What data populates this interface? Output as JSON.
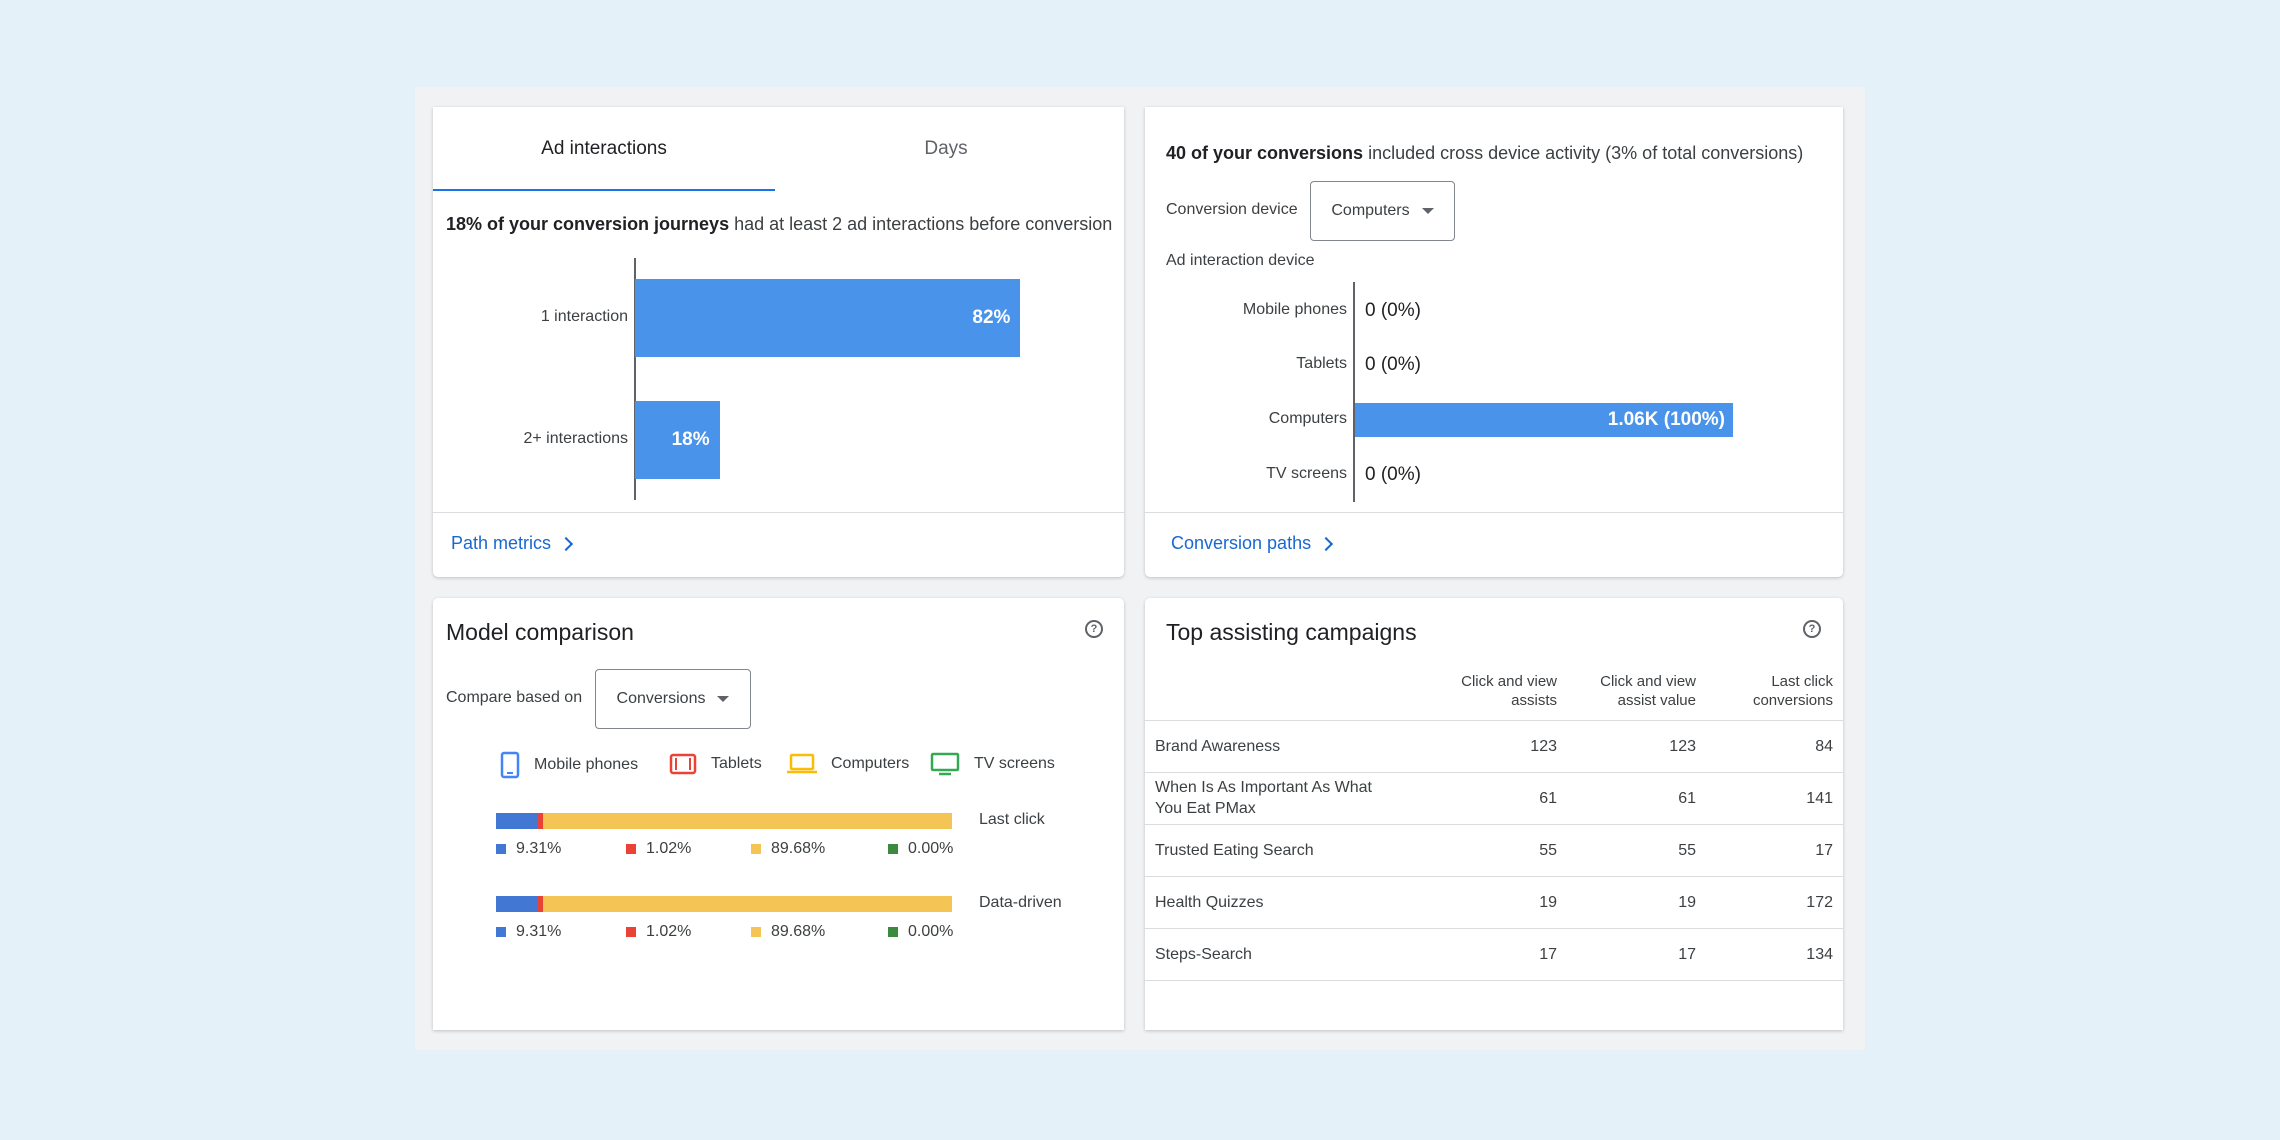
{
  "ad_interactions_card": {
    "tabs": [
      {
        "label": "Ad interactions",
        "active": true
      },
      {
        "label": "Days",
        "active": false
      }
    ],
    "headline_bold": "18% of your conversion journeys",
    "headline_rest": " had at least 2 ad interactions before conversion",
    "footer_link": "Path metrics",
    "chart_data": {
      "type": "bar",
      "orientation": "horizontal",
      "categories": [
        "1 interaction",
        "2+ interactions"
      ],
      "values": [
        82,
        18
      ],
      "labels": [
        "82%",
        "18%"
      ],
      "xlim": [
        0,
        100
      ],
      "colors": [
        "#4993ea"
      ]
    }
  },
  "cross_device_card": {
    "headline_bold": "40 of your conversions",
    "headline_rest": " included cross device activity (3% of total conversions)",
    "conversion_device_label": "Conversion device",
    "conversion_device_value": "Computers",
    "ad_interaction_device_label": "Ad interaction device",
    "footer_link": "Conversion paths",
    "chart_data": {
      "type": "bar",
      "orientation": "horizontal",
      "categories": [
        "Mobile phones",
        "Tablets",
        "Computers",
        "TV screens"
      ],
      "values": [
        0,
        0,
        100,
        0
      ],
      "labels": [
        "0 (0%)",
        "0 (0%)",
        "1.06K (100%)",
        "0 (0%)"
      ],
      "xlim": [
        0,
        100
      ],
      "colors": [
        "#4993ea"
      ]
    }
  },
  "model_comparison_card": {
    "title": "Model comparison",
    "compare_label": "Compare based on",
    "compare_value": "Conversions",
    "legend": [
      {
        "label": "Mobile phones",
        "icon": "mobile-phone-icon",
        "color": "#4285f4"
      },
      {
        "label": "Tablets",
        "icon": "tablet-icon",
        "color": "#ea4335"
      },
      {
        "label": "Computers",
        "icon": "laptop-icon",
        "color": "#fbbc04"
      },
      {
        "label": "TV screens",
        "icon": "tv-icon",
        "color": "#34a853"
      }
    ],
    "chart_data": {
      "type": "bar",
      "stacked": true,
      "orientation": "horizontal",
      "categories": [
        "Last click",
        "Data-driven"
      ],
      "series": [
        {
          "name": "Mobile phones",
          "values": [
            9.31,
            9.31
          ],
          "labels": [
            "9.31%",
            "9.31%"
          ],
          "color": "#4278d4"
        },
        {
          "name": "Tablets",
          "values": [
            1.02,
            1.02
          ],
          "labels": [
            "1.02%",
            "1.02%"
          ],
          "color": "#ea4335"
        },
        {
          "name": "Computers",
          "values": [
            89.68,
            89.68
          ],
          "labels": [
            "89.68%",
            "89.68%"
          ],
          "color": "#f4c555"
        },
        {
          "name": "TV screens",
          "values": [
            0.0,
            0.0
          ],
          "labels": [
            "0.00%",
            "0.00%"
          ],
          "color": "#3c8a3e"
        }
      ],
      "xlim": [
        0,
        100
      ]
    }
  },
  "top_campaigns_card": {
    "title": "Top assisting campaigns",
    "columns": [
      "",
      "Click and view assists",
      "Click and view assist value",
      "Last click conversions"
    ],
    "rows": [
      {
        "name": "Brand Awareness",
        "assists": "123",
        "assist_value": "123",
        "last_click": "84"
      },
      {
        "name": "When Is As Important As What You Eat PMax",
        "assists": "61",
        "assist_value": "61",
        "last_click": "141"
      },
      {
        "name": "Trusted Eating Search",
        "assists": "55",
        "assist_value": "55",
        "last_click": "17"
      },
      {
        "name": "Health Quizzes",
        "assists": "19",
        "assist_value": "19",
        "last_click": "172"
      },
      {
        "name": "Steps-Search",
        "assists": "17",
        "assist_value": "17",
        "last_click": "134"
      }
    ]
  }
}
